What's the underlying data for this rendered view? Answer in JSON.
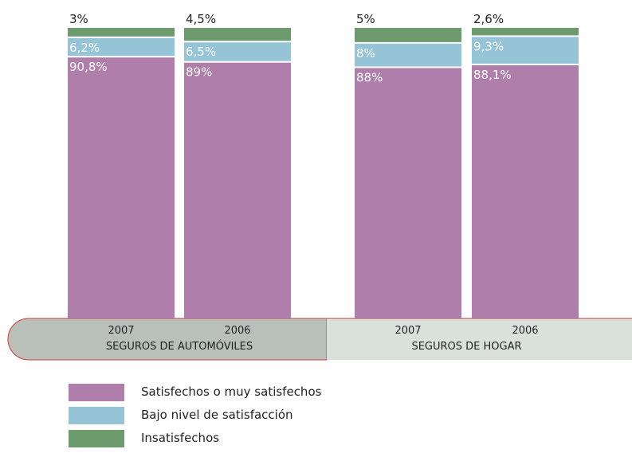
{
  "colors": {
    "satisfied": "#b07eab",
    "low": "#95c4d6",
    "unsatisfied": "#6e9b6e",
    "band_autos": "#b9bfb9",
    "band_hogar": "#d9e1da",
    "band_border": "#d03a3a"
  },
  "groups": [
    {
      "label": "SEGUROS DE AUTOMÓVILES",
      "years": [
        "2007",
        "2006"
      ]
    },
    {
      "label": "SEGUROS DE HOGAR",
      "years": [
        "2007",
        "2006"
      ]
    }
  ],
  "legend": [
    {
      "key": "satisfied",
      "label": "Satisfechos o muy satisfechos"
    },
    {
      "key": "low",
      "label": "Bajo nivel de satisfacción"
    },
    {
      "key": "unsatisfied",
      "label": "Insatisfechos"
    }
  ],
  "chart_data": {
    "type": "bar",
    "stacked": true,
    "categories": [
      "2007",
      "2006",
      "2007",
      "2006"
    ],
    "groups": [
      "SEGUROS DE AUTOMÓVILES",
      "SEGUROS DE AUTOMÓVILES",
      "SEGUROS DE HOGAR",
      "SEGUROS DE HOGAR"
    ],
    "series": [
      {
        "name": "Satisfechos o muy satisfechos",
        "values": [
          90.8,
          89,
          88,
          88.1
        ],
        "labels": [
          "90,8%",
          "89%",
          "88%",
          "88,1%"
        ]
      },
      {
        "name": "Bajo nivel de satisfacción",
        "values": [
          6.2,
          6.5,
          8,
          9.3
        ],
        "labels": [
          "6,2%",
          "6,5%",
          "8%",
          "9,3%"
        ]
      },
      {
        "name": "Insatisfechos",
        "values": [
          3,
          4.5,
          5,
          2.6
        ],
        "labels": [
          "3%",
          "4,5%",
          "5%",
          "2,6%"
        ]
      }
    ],
    "ylim": [
      0,
      100
    ],
    "grid": false,
    "legend_position": "bottom-left"
  }
}
